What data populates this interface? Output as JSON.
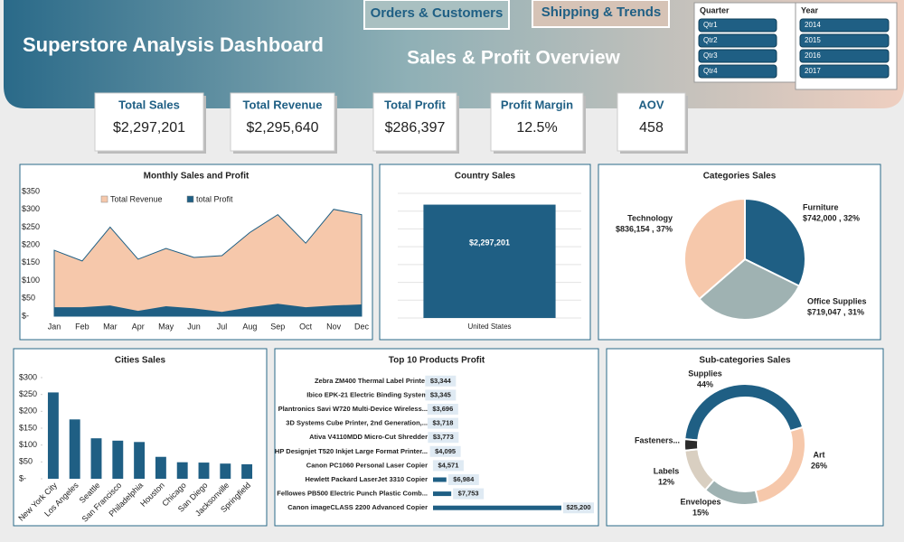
{
  "header": {
    "title": "Superstore Analysis Dashboard",
    "subtitle": "Sales & Profit Overview",
    "nav": [
      "Orders & Customers",
      "Shipping & Trends"
    ]
  },
  "slicers": [
    {
      "title": "Quarter",
      "items": [
        "Qtr1",
        "Qtr2",
        "Qtr3",
        "Qtr4"
      ]
    },
    {
      "title": "Year",
      "items": [
        "2014",
        "2015",
        "2016",
        "2017"
      ]
    }
  ],
  "kpis": [
    {
      "label": "Total Sales",
      "value": "$2,297,201"
    },
    {
      "label": "Total Revenue",
      "value": "$2,295,640"
    },
    {
      "label": "Total Profit",
      "value": "$286,397"
    },
    {
      "label": "Profit Margin",
      "value": "12.5%"
    },
    {
      "label": "AOV",
      "value": "458"
    }
  ],
  "chart_data": [
    {
      "type": "area",
      "title": "Monthly Sales and Profit",
      "categories": [
        "Jan",
        "Feb",
        "Mar",
        "Apr",
        "May",
        "Jun",
        "Jul",
        "Aug",
        "Sep",
        "Oct",
        "Nov",
        "Dec"
      ],
      "series": [
        {
          "name": "Total Revenue",
          "color": "#f6c8ab",
          "values": [
            185,
            155,
            250,
            160,
            190,
            165,
            170,
            235,
            285,
            205,
            300,
            285
          ]
        },
        {
          "name": "total Profit",
          "color": "#1f5f84",
          "values": [
            25,
            25,
            30,
            15,
            28,
            22,
            12,
            25,
            35,
            25,
            30,
            33
          ]
        }
      ],
      "ylim": [
        0,
        350
      ],
      "yticks": [
        {
          "value": 0,
          "label": "$-"
        },
        {
          "value": 50,
          "label": "$50"
        },
        {
          "value": 100,
          "label": "$100"
        },
        {
          "value": 150,
          "label": "$150"
        },
        {
          "value": 200,
          "label": "$200"
        },
        {
          "value": 250,
          "label": "$250"
        },
        {
          "value": 300,
          "label": "$300"
        },
        {
          "value": 350,
          "label": "$350"
        }
      ]
    },
    {
      "type": "bar",
      "title": "Country Sales",
      "categories": [
        "United States"
      ],
      "values": [
        2297201
      ],
      "value_labels": [
        "$2,297,201"
      ],
      "color": "#1f5f84"
    },
    {
      "type": "pie",
      "title": "Categories Sales",
      "categories": [
        "Furniture",
        "Office Supplies",
        "Technology"
      ],
      "values": [
        742000,
        719047,
        836154
      ],
      "value_labels": [
        "$742,000 , 32%",
        "$719,047 , 31%",
        "$836,154 , 37%"
      ],
      "colors": [
        "#1f5f84",
        "#9fb2b2",
        "#f6c8ab"
      ]
    },
    {
      "type": "bar",
      "title": "Cities Sales",
      "categories": [
        "New York City",
        "Los Angeles",
        "Seattle",
        "San Francisco",
        "Philadelphia",
        "Houston",
        "Chicago",
        "San Diego",
        "Jacksonville",
        "Springfield"
      ],
      "values": [
        256,
        176,
        120,
        113,
        109,
        65,
        49,
        48,
        45,
        43
      ],
      "color": "#1f5f84",
      "ylim": [
        0,
        300
      ],
      "yticks": [
        {
          "value": 0,
          "label": "$-"
        },
        {
          "value": 50,
          "label": "$50"
        },
        {
          "value": 100,
          "label": "$100"
        },
        {
          "value": 150,
          "label": "$150"
        },
        {
          "value": 200,
          "label": "$200"
        },
        {
          "value": 250,
          "label": "$250"
        },
        {
          "value": 300,
          "label": "$300"
        }
      ]
    },
    {
      "type": "barh",
      "title": "Top 10 Products Profit",
      "categories": [
        "Zebra ZM400 Thermal Label Printer",
        "Ibico EPK-21 Electric Binding System",
        "Plantronics Savi W720 Multi-Device Wireless...",
        "3D Systems Cube Printer, 2nd Generation,...",
        "Ativa V4110MDD Micro-Cut Shredder",
        "HP Designjet T520 Inkjet Large Format Printer...",
        "Canon PC1060 Personal Laser Copier",
        "Hewlett Packard LaserJet 3310 Copier",
        "Fellowes PB500 Electric Punch Plastic Comb...",
        "Canon imageCLASS 2200 Advanced Copier"
      ],
      "values": [
        3344,
        3345,
        3696,
        3718,
        3773,
        4095,
        4571,
        6984,
        7753,
        25200
      ],
      "value_labels": [
        "$3,344",
        "$3,345",
        "$3,696",
        "$3,718",
        "$3,773",
        "$4,095",
        "$4,571",
        "$6,984",
        "$7,753",
        "$25,200"
      ],
      "color": "#1f5f84"
    },
    {
      "type": "donut",
      "title": "Sub-categories Sales",
      "categories": [
        "Supplies",
        "Art",
        "Envelopes",
        "Labels",
        "Fasteners..."
      ],
      "values": [
        44,
        26,
        15,
        12,
        3
      ],
      "value_labels": [
        "44%",
        "26%",
        "15%",
        "12%",
        null
      ],
      "colors": [
        "#1f5f84",
        "#f6c8ab",
        "#9fb2b2",
        "#d9cfc1",
        "#2b2b2b"
      ]
    }
  ]
}
